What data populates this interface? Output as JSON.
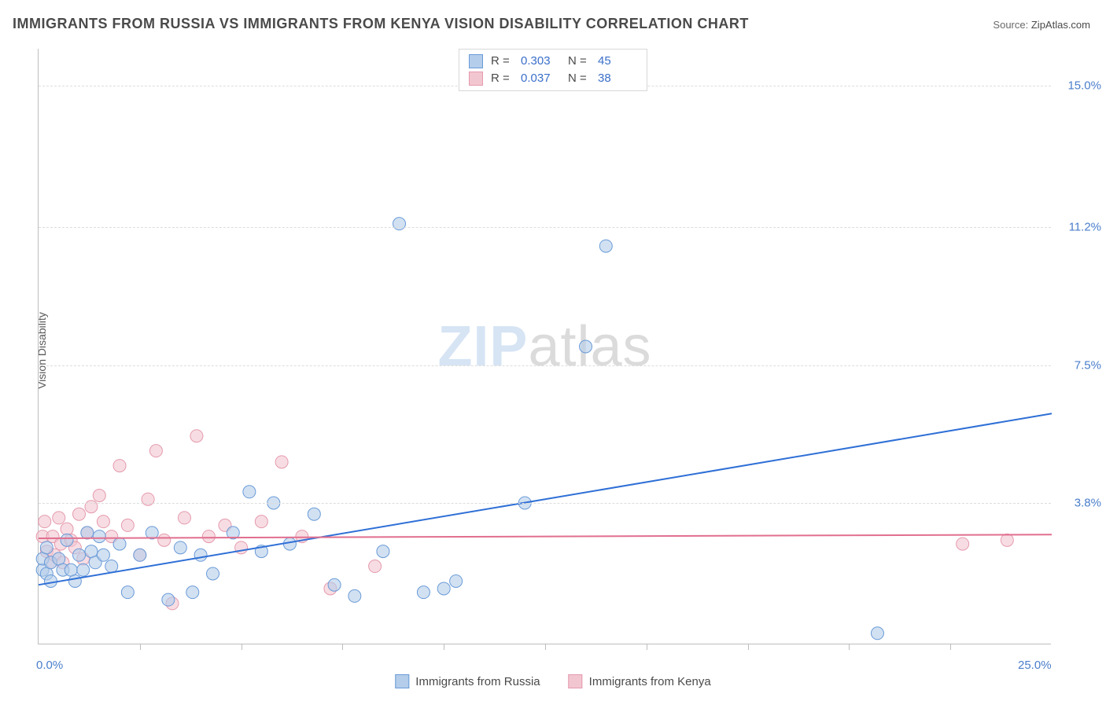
{
  "title": "IMMIGRANTS FROM RUSSIA VS IMMIGRANTS FROM KENYA VISION DISABILITY CORRELATION CHART",
  "source_label": "Source:",
  "source_value": "ZipAtlas.com",
  "ylabel": "Vision Disability",
  "watermark_a": "ZIP",
  "watermark_b": "atlas",
  "chart": {
    "type": "scatter",
    "xlim": [
      0,
      25.0
    ],
    "ylim": [
      0,
      16.0
    ],
    "x_tick_labels": [
      "0.0%",
      "25.0%"
    ],
    "y_ticks": [
      {
        "value": 3.8,
        "label": "3.8%"
      },
      {
        "value": 7.5,
        "label": "7.5%"
      },
      {
        "value": 11.2,
        "label": "11.2%"
      },
      {
        "value": 15.0,
        "label": "15.0%"
      }
    ],
    "x_minor_ticks": [
      2.5,
      5.0,
      7.5,
      10.0,
      12.5,
      15.0,
      17.5,
      20.0,
      22.5
    ],
    "grid_color": "#dcdcdc",
    "axis_color": "#bdbdbd",
    "background_color": "#ffffff",
    "marker_radius": 8,
    "marker_opacity": 0.6,
    "line_width": 2
  },
  "series": [
    {
      "name": "Immigrants from Russia",
      "color_fill": "#b4cdea",
      "color_stroke": "#6a9bd8",
      "line_color": "#2e6fd6",
      "r": "0.303",
      "n": "45",
      "trend": {
        "x1": 0,
        "y1": 1.6,
        "x2": 25,
        "y2": 6.2
      },
      "points": [
        [
          0.1,
          2.0
        ],
        [
          0.1,
          2.3
        ],
        [
          0.2,
          1.9
        ],
        [
          0.2,
          2.6
        ],
        [
          0.3,
          2.2
        ],
        [
          0.3,
          1.7
        ],
        [
          0.5,
          2.3
        ],
        [
          0.6,
          2.0
        ],
        [
          0.7,
          2.8
        ],
        [
          0.8,
          2.0
        ],
        [
          0.9,
          1.7
        ],
        [
          1.0,
          2.4
        ],
        [
          1.1,
          2.0
        ],
        [
          1.2,
          3.0
        ],
        [
          1.3,
          2.5
        ],
        [
          1.4,
          2.2
        ],
        [
          1.5,
          2.9
        ],
        [
          1.6,
          2.4
        ],
        [
          1.8,
          2.1
        ],
        [
          2.0,
          2.7
        ],
        [
          2.2,
          1.4
        ],
        [
          2.5,
          2.4
        ],
        [
          2.8,
          3.0
        ],
        [
          3.2,
          1.2
        ],
        [
          3.5,
          2.6
        ],
        [
          3.8,
          1.4
        ],
        [
          4.0,
          2.4
        ],
        [
          4.3,
          1.9
        ],
        [
          4.8,
          3.0
        ],
        [
          5.2,
          4.1
        ],
        [
          5.5,
          2.5
        ],
        [
          5.8,
          3.8
        ],
        [
          6.2,
          2.7
        ],
        [
          6.8,
          3.5
        ],
        [
          7.3,
          1.6
        ],
        [
          7.8,
          1.3
        ],
        [
          8.5,
          2.5
        ],
        [
          8.9,
          11.3
        ],
        [
          9.5,
          1.4
        ],
        [
          10.0,
          1.5
        ],
        [
          10.3,
          1.7
        ],
        [
          12.0,
          3.8
        ],
        [
          13.5,
          8.0
        ],
        [
          14.0,
          10.7
        ],
        [
          20.7,
          0.3
        ]
      ]
    },
    {
      "name": "Immigrants from Kenya",
      "color_fill": "#f2c6d0",
      "color_stroke": "#e59aae",
      "line_color": "#e16f8f",
      "r": "0.037",
      "n": "38",
      "trend": {
        "x1": 0,
        "y1": 2.85,
        "x2": 25,
        "y2": 2.95
      },
      "points": [
        [
          0.1,
          2.9
        ],
        [
          0.2,
          2.5
        ],
        [
          0.15,
          3.3
        ],
        [
          0.3,
          2.2
        ],
        [
          0.35,
          2.9
        ],
        [
          0.4,
          2.4
        ],
        [
          0.5,
          3.4
        ],
        [
          0.55,
          2.7
        ],
        [
          0.6,
          2.2
        ],
        [
          0.7,
          3.1
        ],
        [
          0.8,
          2.8
        ],
        [
          0.9,
          2.6
        ],
        [
          1.0,
          3.5
        ],
        [
          1.1,
          2.3
        ],
        [
          1.2,
          3.0
        ],
        [
          1.3,
          3.7
        ],
        [
          1.5,
          4.0
        ],
        [
          1.6,
          3.3
        ],
        [
          1.8,
          2.9
        ],
        [
          2.0,
          4.8
        ],
        [
          2.2,
          3.2
        ],
        [
          2.5,
          2.4
        ],
        [
          2.7,
          3.9
        ],
        [
          2.9,
          5.2
        ],
        [
          3.1,
          2.8
        ],
        [
          3.3,
          1.1
        ],
        [
          3.6,
          3.4
        ],
        [
          3.9,
          5.6
        ],
        [
          4.2,
          2.9
        ],
        [
          4.6,
          3.2
        ],
        [
          5.0,
          2.6
        ],
        [
          5.5,
          3.3
        ],
        [
          6.0,
          4.9
        ],
        [
          6.5,
          2.9
        ],
        [
          7.2,
          1.5
        ],
        [
          8.3,
          2.1
        ],
        [
          22.8,
          2.7
        ],
        [
          23.9,
          2.8
        ]
      ]
    }
  ],
  "legend_labels": {
    "r": "R =",
    "n": "N ="
  }
}
